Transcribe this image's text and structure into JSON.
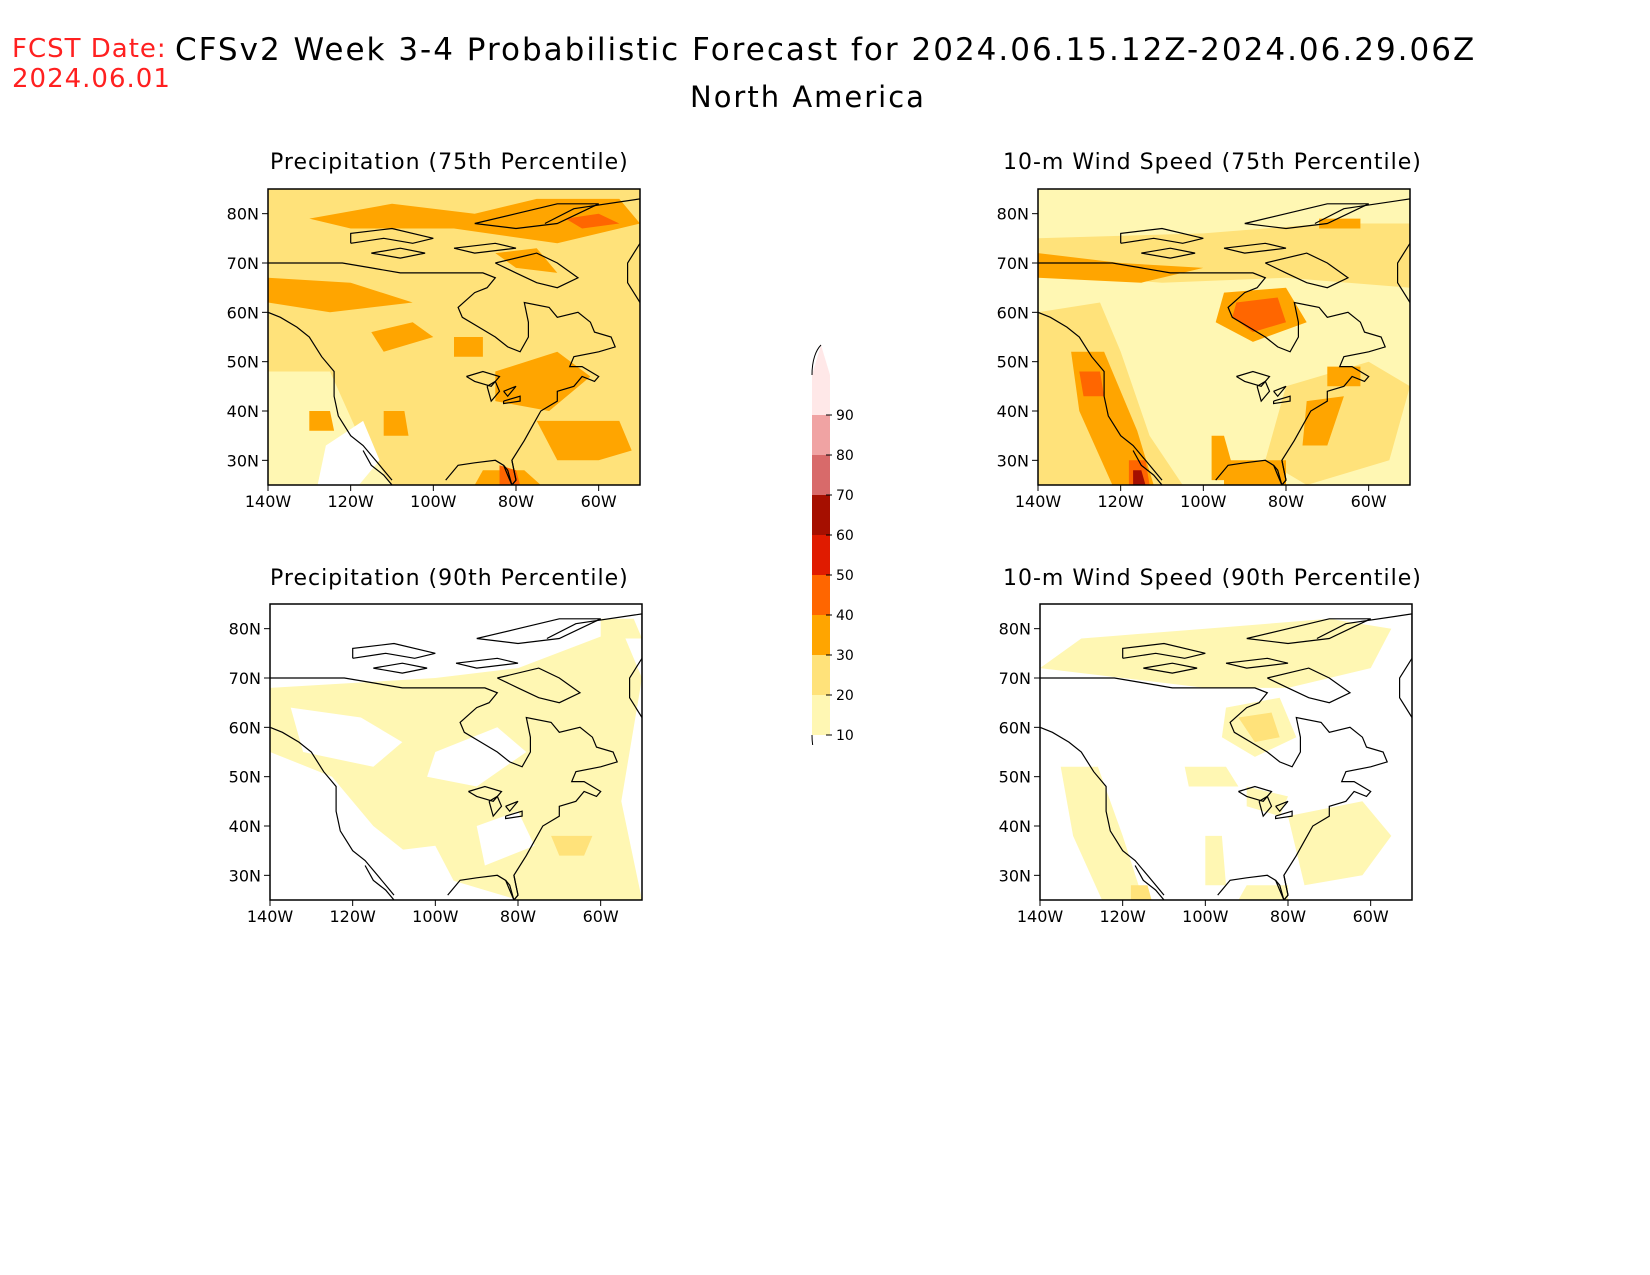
{
  "header": {
    "fcst_label": "FCST Date:",
    "fcst_date": "2024.06.01",
    "title": "CFSv2 Week 3-4 Probabilistic Forecast for 2024.06.15.12Z-2024.06.29.06Z",
    "subtitle": "North America"
  },
  "colors": {
    "c10": "#fff7b3",
    "c20": "#ffe27a",
    "c30": "#ffa500",
    "c40": "#ff6600",
    "c50": "#e01b00",
    "c60": "#a50f00",
    "c70": "#d86a6a",
    "c80": "#f0a3a3",
    "c90": "#ffe8e8"
  },
  "colorbar": {
    "levels": [
      "10",
      "20",
      "30",
      "40",
      "50",
      "60",
      "70",
      "80",
      "90"
    ]
  },
  "panels": [
    {
      "id": "precip75",
      "title": "Precipitation (75th Percentile)",
      "base": "c20"
    },
    {
      "id": "wind75",
      "title": "10-m Wind Speed (75th Percentile)",
      "base": "c10"
    },
    {
      "id": "precip90",
      "title": "Precipitation (90th Percentile)",
      "base": "white"
    },
    {
      "id": "wind90",
      "title": "10-m Wind Speed (90th Percentile)",
      "base": "white"
    }
  ],
  "axes": {
    "lat_labels": [
      "80N",
      "70N",
      "60N",
      "50N",
      "40N",
      "30N"
    ],
    "lon_labels": [
      "140W",
      "120W",
      "100W",
      "80W",
      "60W"
    ]
  }
}
